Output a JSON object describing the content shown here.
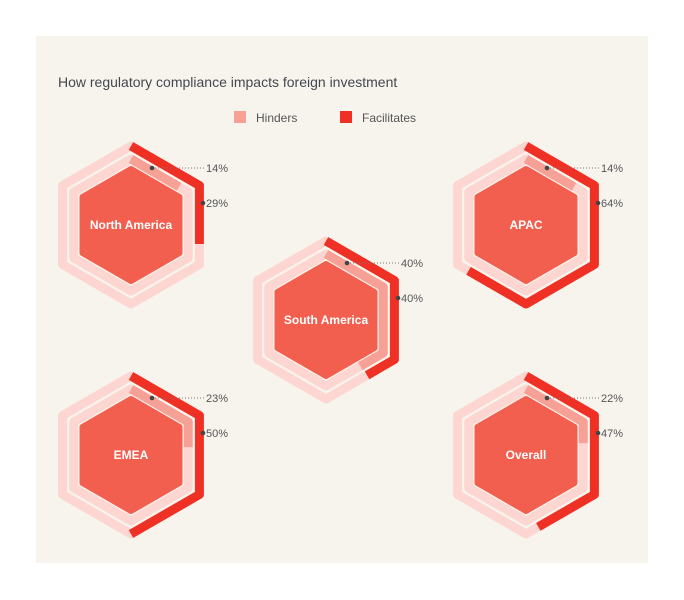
{
  "chart_data": {
    "type": "radial-hexagon-progress",
    "title": "How regulatory compliance impacts foreign investment",
    "legend": [
      {
        "name": "Hinders",
        "color": "#f7a096"
      },
      {
        "name": "Facilitates",
        "color": "#ee3124"
      }
    ],
    "legend_position": "top-center",
    "unit": "%",
    "regions": [
      {
        "name": "North America",
        "hinders": 14,
        "facilitates": 29
      },
      {
        "name": "South America",
        "hinders": 40,
        "facilitates": 40
      },
      {
        "name": "APAC",
        "hinders": 14,
        "facilitates": 64
      },
      {
        "name": "EMEA",
        "hinders": 23,
        "facilitates": 50
      },
      {
        "name": "Overall",
        "hinders": 22,
        "facilitates": 47
      }
    ],
    "colors": {
      "track": "#fdd6d1",
      "center": "#f25f4f",
      "background": "#f7f4ee",
      "label": "#555555"
    }
  }
}
